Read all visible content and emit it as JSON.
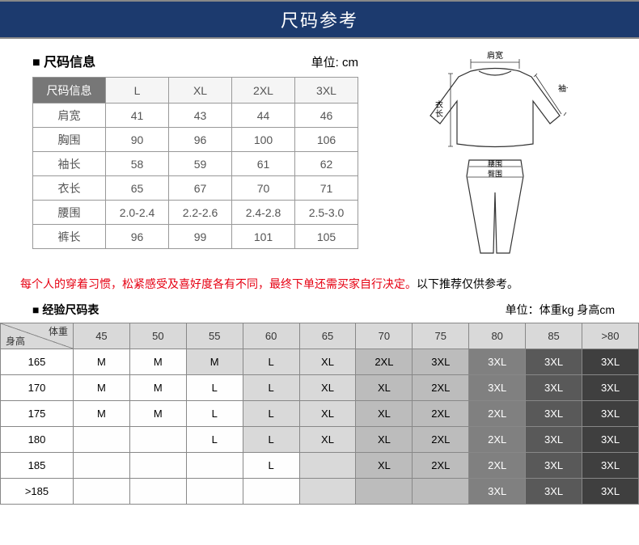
{
  "header": {
    "title": "尺码参考"
  },
  "size_info": {
    "title": "■ 尺码信息",
    "unit": "单位: cm",
    "header_label": "尺码信息",
    "columns": [
      "L",
      "XL",
      "2XL",
      "3XL"
    ],
    "rows": [
      {
        "label": "肩宽",
        "values": [
          "41",
          "43",
          "44",
          "46"
        ]
      },
      {
        "label": "胸围",
        "values": [
          "90",
          "96",
          "100",
          "106"
        ]
      },
      {
        "label": "袖长",
        "values": [
          "58",
          "59",
          "61",
          "62"
        ]
      },
      {
        "label": "衣长",
        "values": [
          "65",
          "67",
          "70",
          "71"
        ]
      },
      {
        "label": "腰围",
        "values": [
          "2.0-2.4",
          "2.2-2.6",
          "2.4-2.8",
          "2.5-3.0"
        ]
      },
      {
        "label": "裤长",
        "values": [
          "96",
          "99",
          "101",
          "105"
        ]
      }
    ]
  },
  "diagram": {
    "shoulder": "肩宽",
    "sleeve": "袖长",
    "body_length": "衣长",
    "waist": "腰围",
    "hip": "臀围"
  },
  "warning": {
    "red": "每个人的穿着习惯，松紧感受及喜好度各有不同，最终下单还需买家自行决定。",
    "tail": "以下推荐仅供参考。"
  },
  "exp": {
    "title": "■ 经验尺码表",
    "unit": "单位：体重kg 身高cm",
    "diag_top": "体重",
    "diag_bot": "身高",
    "weights": [
      "45",
      "50",
      "55",
      "60",
      "65",
      "70",
      "75",
      "80",
      "85",
      ">80"
    ],
    "heights": [
      "165",
      "170",
      "175",
      "180",
      "185",
      ">185"
    ],
    "grid": [
      [
        [
          "M",
          0
        ],
        [
          "M",
          0
        ],
        [
          "M",
          1
        ],
        [
          "L",
          1
        ],
        [
          "XL",
          1
        ],
        [
          "2XL",
          2
        ],
        [
          "3XL",
          2
        ],
        [
          "3XL",
          3
        ],
        [
          "3XL",
          4
        ],
        [
          "3XL",
          5
        ]
      ],
      [
        [
          "M",
          0
        ],
        [
          "M",
          0
        ],
        [
          "L",
          0
        ],
        [
          "L",
          1
        ],
        [
          "XL",
          1
        ],
        [
          "XL",
          2
        ],
        [
          "2XL",
          2
        ],
        [
          "3XL",
          3
        ],
        [
          "3XL",
          4
        ],
        [
          "3XL",
          5
        ]
      ],
      [
        [
          "M",
          0
        ],
        [
          "M",
          0
        ],
        [
          "L",
          0
        ],
        [
          "L",
          1
        ],
        [
          "XL",
          1
        ],
        [
          "XL",
          2
        ],
        [
          "2XL",
          2
        ],
        [
          "2XL",
          3
        ],
        [
          "3XL",
          4
        ],
        [
          "3XL",
          5
        ]
      ],
      [
        [
          "",
          0
        ],
        [
          "",
          0
        ],
        [
          "L",
          0
        ],
        [
          "L",
          1
        ],
        [
          "XL",
          1
        ],
        [
          "XL",
          2
        ],
        [
          "2XL",
          2
        ],
        [
          "2XL",
          3
        ],
        [
          "3XL",
          4
        ],
        [
          "3XL",
          5
        ]
      ],
      [
        [
          "",
          0
        ],
        [
          "",
          0
        ],
        [
          "",
          0
        ],
        [
          "L",
          0
        ],
        [
          "",
          1
        ],
        [
          "XL",
          2
        ],
        [
          "2XL",
          2
        ],
        [
          "2XL",
          3
        ],
        [
          "3XL",
          4
        ],
        [
          "3XL",
          5
        ]
      ],
      [
        [
          "",
          0
        ],
        [
          "",
          0
        ],
        [
          "",
          0
        ],
        [
          "",
          0
        ],
        [
          "",
          1
        ],
        [
          "",
          2
        ],
        [
          "",
          2
        ],
        [
          "3XL",
          3
        ],
        [
          "3XL",
          4
        ],
        [
          "3XL",
          5
        ]
      ]
    ]
  }
}
